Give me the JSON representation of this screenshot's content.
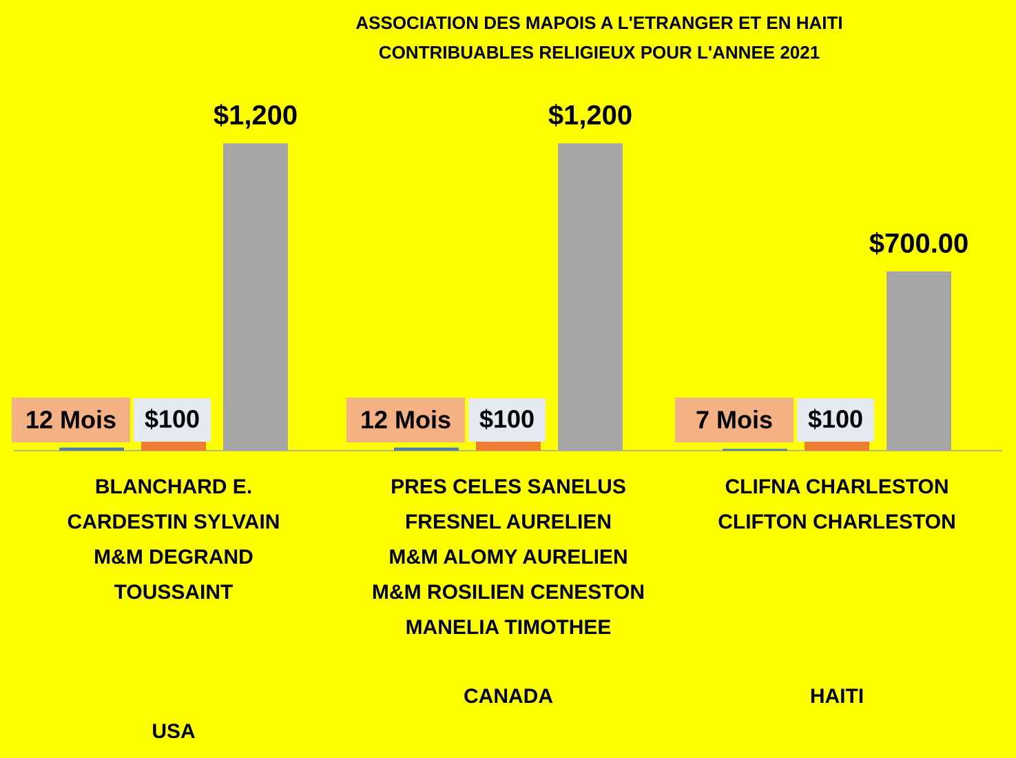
{
  "chart_data": {
    "type": "bar",
    "title": [
      "ASSOCIATION DES MAPOIS A L'ETRANGER ET EN HAITI",
      "CONTRIBUABLES RELIGIEUX POUR L'ANNEE 2021"
    ],
    "categories": [
      "USA",
      "CANADA",
      "HAITI"
    ],
    "category_names": [
      [
        "BLANCHARD E.",
        "CARDESTIN SYLVAIN",
        "M&M DEGRAND",
        "TOUSSAINT"
      ],
      [
        "PRES CELES SANELUS",
        "FRESNEL AURELIEN",
        "M&M ALOMY AURELIEN",
        "M&M ROSILIEN CENESTON",
        "MANELIA TIMOTHEE"
      ],
      [
        "CLIFNA CHARLESTON",
        "CLIFTON CHARLESTON"
      ]
    ],
    "series": [
      {
        "color": "#4f7fa8",
        "values": [
          12,
          12,
          7
        ],
        "value_labels": [
          "12 Mois",
          "12 Mois",
          "7 Mois"
        ]
      },
      {
        "color": "#ed7d31",
        "values": [
          100,
          100,
          100
        ],
        "value_labels": [
          "$100",
          "$100",
          "$100"
        ]
      },
      {
        "color": "#a5a5a5",
        "values": [
          1200,
          1200,
          700
        ],
        "value_labels": [
          "$1,200",
          "$1,200",
          "$700.00"
        ]
      }
    ]
  }
}
